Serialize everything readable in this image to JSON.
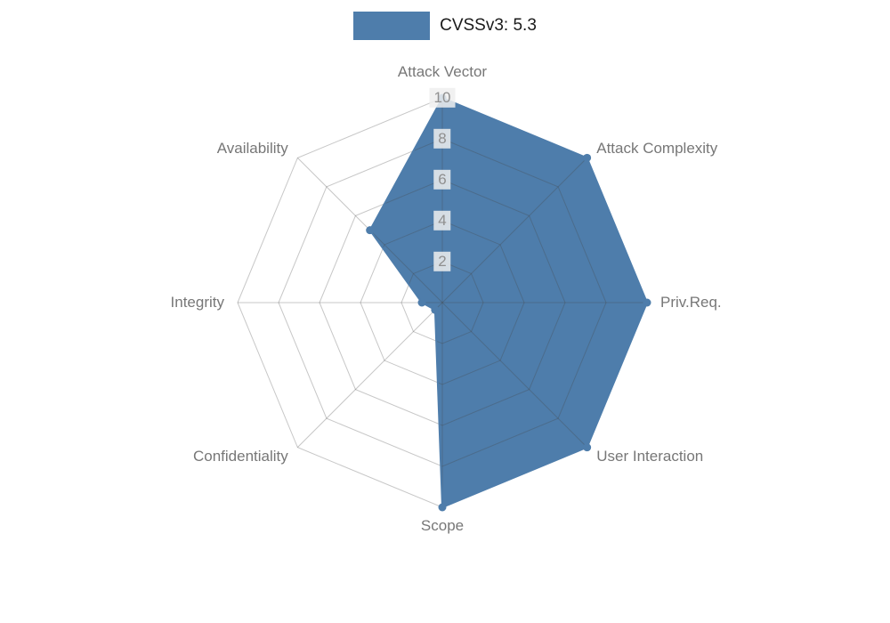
{
  "legend": {
    "label": "CVSSv3: 5.3",
    "swatch_color": "#4e7dab"
  },
  "chart_data": {
    "type": "radar",
    "categories": [
      "Attack Vector",
      "Attack Complexity",
      "Priv.Req.",
      "User Interaction",
      "Scope",
      "Confidentiality",
      "Integrity",
      "Availability"
    ],
    "series": [
      {
        "name": "CVSSv3: 5.3",
        "values": [
          10,
          10,
          10,
          10,
          10,
          0.5,
          1,
          5
        ]
      }
    ],
    "radial_ticks": [
      2,
      4,
      6,
      8,
      10
    ],
    "rlim": [
      0,
      10
    ],
    "grid": true,
    "legend_position": "top",
    "fill_color": "#4e7dab",
    "line_color": "#4e7dab",
    "grid_color": "rgba(70,70,70,0.30)"
  }
}
